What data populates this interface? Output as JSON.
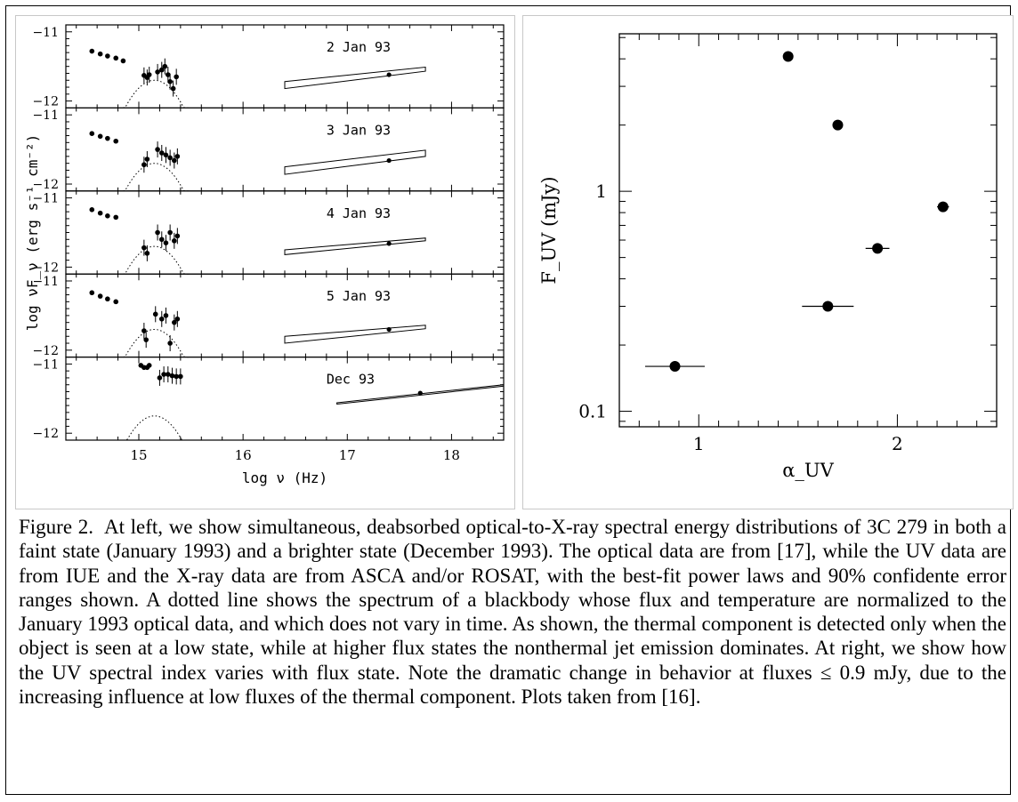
{
  "chart_data": [
    {
      "type": "scatter",
      "xlabel": "log ν (Hz)",
      "ylabel": "log νF_ν (erg s⁻¹ cm⁻²)",
      "xlim": [
        14.3,
        18.5
      ],
      "x_ticks": [
        "15",
        "16",
        "17",
        "18"
      ],
      "panels": [
        {
          "label": "2 Jan 93",
          "ylim": [
            -12.1,
            -10.9
          ],
          "y_ticks": [
            "−11",
            "−12"
          ],
          "optical": [
            [
              14.55,
              -11.28
            ],
            [
              14.63,
              -11.32
            ],
            [
              14.7,
              -11.35
            ],
            [
              14.78,
              -11.38
            ],
            [
              14.85,
              -11.42
            ]
          ],
          "uv": [
            [
              15.05,
              -11.63
            ],
            [
              15.08,
              -11.66
            ],
            [
              15.1,
              -11.62
            ],
            [
              15.18,
              -11.58
            ],
            [
              15.22,
              -11.55
            ],
            [
              15.25,
              -11.5
            ],
            [
              15.28,
              -11.62
            ],
            [
              15.3,
              -11.72
            ],
            [
              15.33,
              -11.82
            ],
            [
              15.36,
              -11.65
            ]
          ],
          "xray": {
            "pivot": [
              17.4,
              -11.62
            ],
            "x": [
              16.4,
              17.75
            ],
            "upper": [
              -11.72,
              -11.51
            ],
            "lower": [
              -11.82,
              -11.57
            ]
          },
          "bb_amp": -11.4
        },
        {
          "label": "3 Jan 93",
          "ylim": [
            -12.1,
            -10.9
          ],
          "y_ticks": [
            "−11",
            "−12"
          ],
          "optical": [
            [
              14.55,
              -11.27
            ],
            [
              14.63,
              -11.31
            ],
            [
              14.7,
              -11.34
            ],
            [
              14.78,
              -11.38
            ]
          ],
          "uv": [
            [
              15.05,
              -11.72
            ],
            [
              15.08,
              -11.64
            ],
            [
              15.18,
              -11.5
            ],
            [
              15.22,
              -11.55
            ],
            [
              15.26,
              -11.58
            ],
            [
              15.3,
              -11.62
            ],
            [
              15.34,
              -11.66
            ],
            [
              15.37,
              -11.6
            ]
          ],
          "xray": {
            "pivot": [
              17.4,
              -11.66
            ],
            "x": [
              16.4,
              17.75
            ],
            "upper": [
              -11.75,
              -11.51
            ],
            "lower": [
              -11.86,
              -11.6
            ]
          },
          "bb_amp": -11.4
        },
        {
          "label": "4 Jan 93",
          "ylim": [
            -12.1,
            -10.9
          ],
          "y_ticks": [
            "−11",
            "−12"
          ],
          "optical": [
            [
              14.55,
              -11.17
            ],
            [
              14.63,
              -11.22
            ],
            [
              14.7,
              -11.26
            ],
            [
              14.78,
              -11.28
            ]
          ],
          "uv": [
            [
              15.05,
              -11.72
            ],
            [
              15.08,
              -11.8
            ],
            [
              15.18,
              -11.5
            ],
            [
              15.22,
              -11.6
            ],
            [
              15.26,
              -11.65
            ],
            [
              15.3,
              -11.5
            ],
            [
              15.34,
              -11.62
            ],
            [
              15.37,
              -11.55
            ]
          ],
          "xray": {
            "pivot": [
              17.4,
              -11.66
            ],
            "x": [
              16.4,
              17.75
            ],
            "upper": [
              -11.75,
              -11.58
            ],
            "lower": [
              -11.82,
              -11.62
            ]
          },
          "bb_amp": -11.4
        },
        {
          "label": "5 Jan 93",
          "ylim": [
            -12.1,
            -10.9
          ],
          "y_ticks": [
            "−11",
            "−12"
          ],
          "optical": [
            [
              14.55,
              -11.17
            ],
            [
              14.63,
              -11.22
            ],
            [
              14.7,
              -11.26
            ],
            [
              14.78,
              -11.3
            ]
          ],
          "uv": [
            [
              15.05,
              -11.72
            ],
            [
              15.07,
              -11.85
            ],
            [
              15.16,
              -11.48
            ],
            [
              15.22,
              -11.55
            ],
            [
              15.26,
              -11.5
            ],
            [
              15.3,
              -11.9
            ],
            [
              15.34,
              -11.6
            ],
            [
              15.37,
              -11.55
            ]
          ],
          "xray": {
            "pivot": [
              17.4,
              -11.7
            ],
            "x": [
              16.4,
              17.75
            ],
            "upper": [
              -11.8,
              -11.64
            ],
            "lower": [
              -11.9,
              -11.69
            ]
          },
          "bb_amp": -11.4
        },
        {
          "label": "Dec 93",
          "ylim": [
            -12.1,
            -10.9
          ],
          "y_ticks": [
            "−11",
            "−12"
          ],
          "optical": [
            [
              15.02,
              -11.02
            ],
            [
              15.05,
              -11.05
            ],
            [
              15.08,
              -11.05
            ],
            [
              15.1,
              -11.02
            ]
          ],
          "uv": [
            [
              15.2,
              -11.2
            ],
            [
              15.24,
              -11.15
            ],
            [
              15.28,
              -11.15
            ],
            [
              15.32,
              -11.17
            ],
            [
              15.36,
              -11.18
            ],
            [
              15.4,
              -11.18
            ]
          ],
          "xray": {
            "pivot": [
              17.7,
              -11.42
            ],
            "x": [
              16.9,
              18.5
            ],
            "upper": [
              -11.56,
              -11.3
            ],
            "lower": [
              -11.58,
              -11.32
            ]
          },
          "bb_amp": -11.4
        }
      ]
    },
    {
      "type": "scatter",
      "xlabel": "α_UV",
      "ylabel": "F_UV (mJy)",
      "xlim": [
        0.6,
        2.5
      ],
      "ylim": [
        0.085,
        5.2
      ],
      "yscale": "log",
      "x_ticks": [
        "1",
        "2"
      ],
      "y_ticks": [
        "0.1",
        "1"
      ],
      "points": [
        {
          "x": 0.88,
          "y": 0.16,
          "xerr": 0.15
        },
        {
          "x": 1.45,
          "y": 4.1,
          "xerr": 0
        },
        {
          "x": 1.7,
          "y": 2.0,
          "xerr": 0
        },
        {
          "x": 1.65,
          "y": 0.3,
          "xerr": 0.13
        },
        {
          "x": 1.9,
          "y": 0.55,
          "xerr": 0.06
        },
        {
          "x": 2.23,
          "y": 0.85,
          "xerr": 0.03
        }
      ]
    }
  ],
  "caption": {
    "lead": "Figure 2.",
    "text": "At left, we show simultaneous, deabsorbed optical-to-X-ray spectral energy distributions of 3C 279 in both a faint state (January 1993) and a brighter state (December 1993). The optical data are from [17], while the UV data are from IUE and the X-ray data are from ASCA and/or ROSAT, with the best-fit power laws and 90% confidente error ranges shown. A dotted line shows the spectrum of a blackbody whose flux and temperature are normalized to the January 1993 optical data, and which does not vary in time. As shown, the thermal component is detected only when the object is seen at a low state, while at higher flux states the nonthermal jet emission dominates. At right, we show how the UV spectral index varies with flux state. Note the dramatic change in behavior at fluxes ≤ 0.9 mJy, due to the increasing influence at low fluxes of the thermal component. Plots taken from [16]."
  }
}
